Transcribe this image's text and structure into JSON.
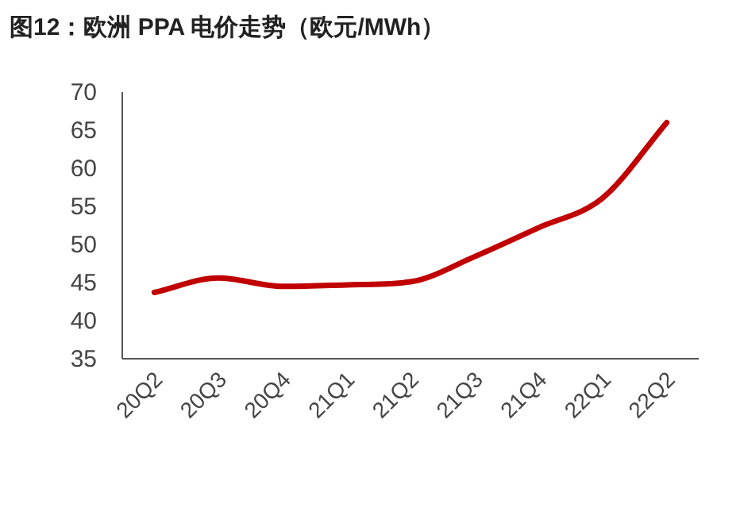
{
  "chart_data": {
    "type": "line",
    "title": "图12：欧洲 PPA 电价走势（欧元/MWh）",
    "categories": [
      "20Q2",
      "20Q3",
      "20Q4",
      "21Q1",
      "21Q2",
      "21Q3",
      "21Q4",
      "22Q1",
      "22Q2"
    ],
    "series": [
      {
        "color": "#c00000",
        "values": [
          43.7,
          45.6,
          44.5,
          44.7,
          45.1,
          48.4,
          52.2,
          56.1,
          66.0
        ]
      }
    ],
    "ylim": [
      35,
      70
    ],
    "yticks": [
      35,
      40,
      45,
      50,
      55,
      60,
      65,
      70
    ],
    "grid": false,
    "marker": "none",
    "line_style": "solid"
  }
}
